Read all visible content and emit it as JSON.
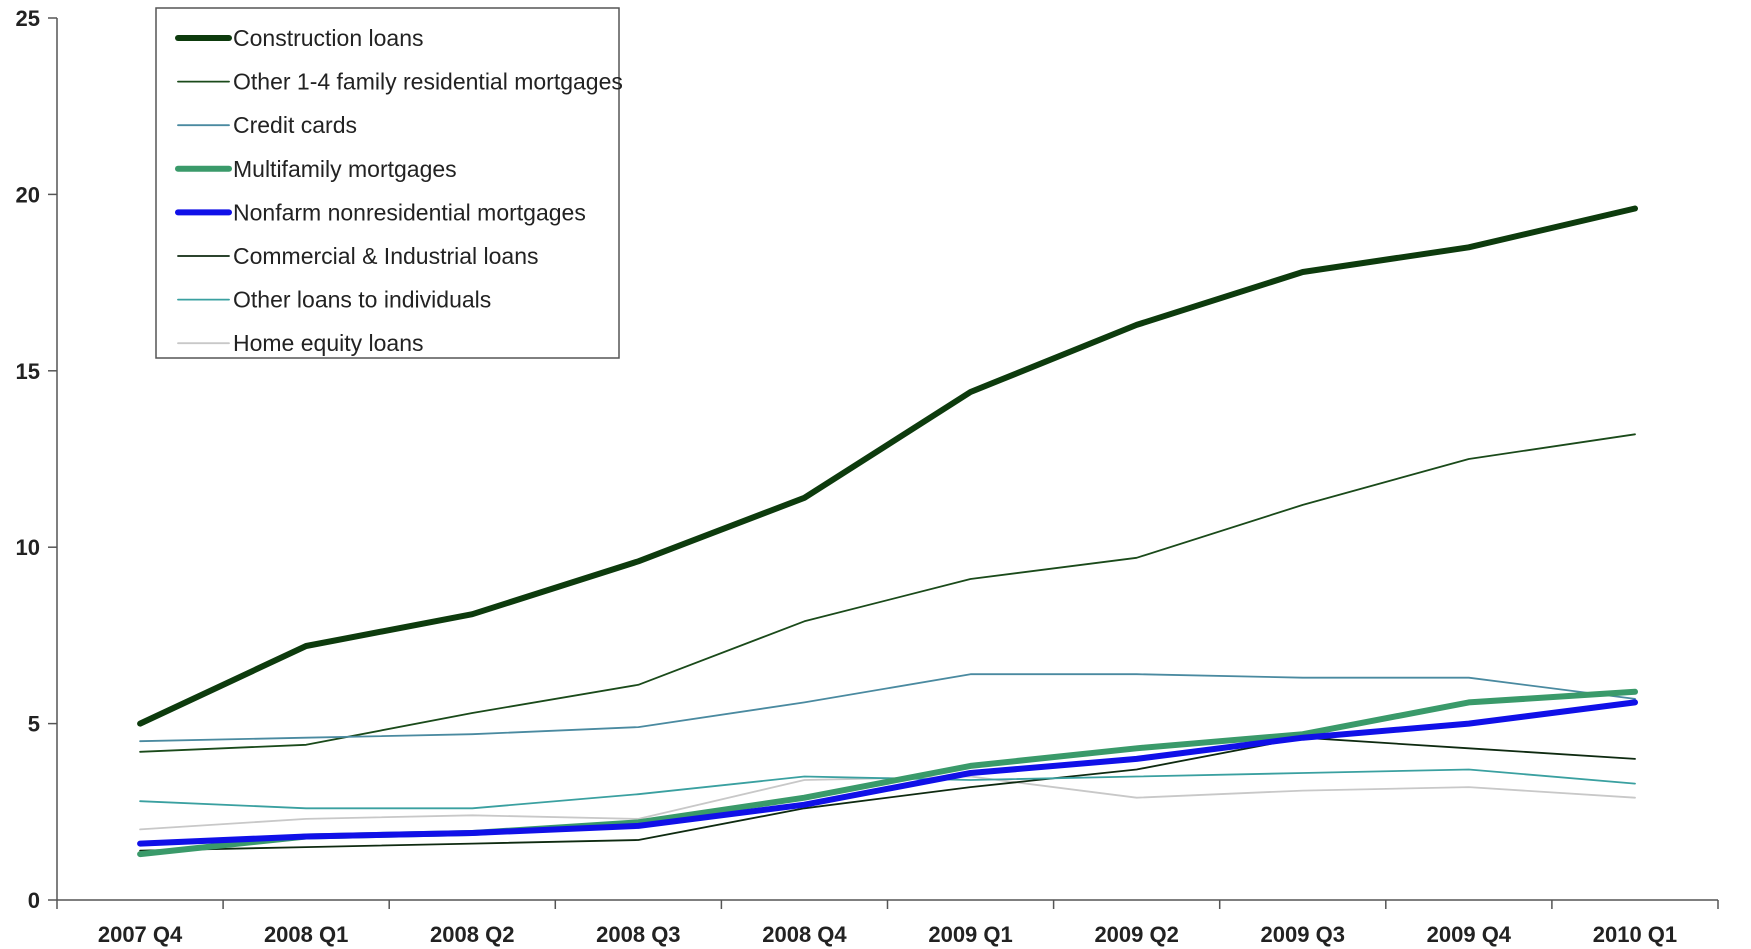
{
  "chart_data": {
    "type": "line",
    "title": "",
    "xlabel": "",
    "ylabel": "",
    "categories": [
      "2007 Q4",
      "2008 Q1",
      "2008 Q2",
      "2008 Q3",
      "2008 Q4",
      "2009 Q1",
      "2009 Q2",
      "2009 Q3",
      "2009 Q4",
      "2010 Q1"
    ],
    "ylim": [
      0,
      25
    ],
    "yticks": [
      "0",
      "5",
      "10",
      "15",
      "20",
      "25"
    ],
    "grid": false,
    "legend_position": "top-left",
    "series": [
      {
        "name": "Construction loans",
        "color": "#0d3b0d",
        "weight": "thick",
        "values": [
          5.0,
          7.2,
          8.1,
          9.6,
          11.4,
          14.4,
          16.3,
          17.8,
          18.5,
          19.6
        ]
      },
      {
        "name": "Other 1-4 family residential mortgages",
        "color": "#1a4a1a",
        "weight": "thin",
        "values": [
          4.2,
          4.4,
          5.3,
          6.1,
          7.9,
          9.1,
          9.7,
          11.2,
          12.5,
          13.2
        ]
      },
      {
        "name": "Credit cards",
        "color": "#4a8aa0",
        "weight": "thin",
        "values": [
          4.5,
          4.6,
          4.7,
          4.9,
          5.6,
          6.4,
          6.4,
          6.3,
          6.3,
          5.7
        ]
      },
      {
        "name": "Multifamily mortgages",
        "color": "#3a9a6a",
        "weight": "thick",
        "values": [
          1.3,
          1.8,
          1.9,
          2.2,
          2.9,
          3.8,
          4.3,
          4.7,
          5.6,
          5.9
        ]
      },
      {
        "name": "Nonfarm nonresidential mortgages",
        "color": "#1010e8",
        "weight": "thick",
        "values": [
          1.6,
          1.8,
          1.9,
          2.1,
          2.7,
          3.6,
          4.0,
          4.6,
          5.0,
          5.6
        ]
      },
      {
        "name": "Commercial & Industrial loans",
        "color": "#0e2a10",
        "weight": "thin",
        "values": [
          1.4,
          1.5,
          1.6,
          1.7,
          2.6,
          3.2,
          3.7,
          4.6,
          4.3,
          4.0
        ]
      },
      {
        "name": "Other loans to individuals",
        "color": "#3aa0a0",
        "weight": "thin",
        "values": [
          2.8,
          2.6,
          2.6,
          3.0,
          3.5,
          3.4,
          3.5,
          3.6,
          3.7,
          3.3
        ]
      },
      {
        "name": "Home equity loans",
        "color": "#c8c8c8",
        "weight": "thin",
        "values": [
          2.0,
          2.3,
          2.4,
          2.3,
          3.4,
          3.5,
          2.9,
          3.1,
          3.2,
          2.9
        ]
      }
    ]
  }
}
